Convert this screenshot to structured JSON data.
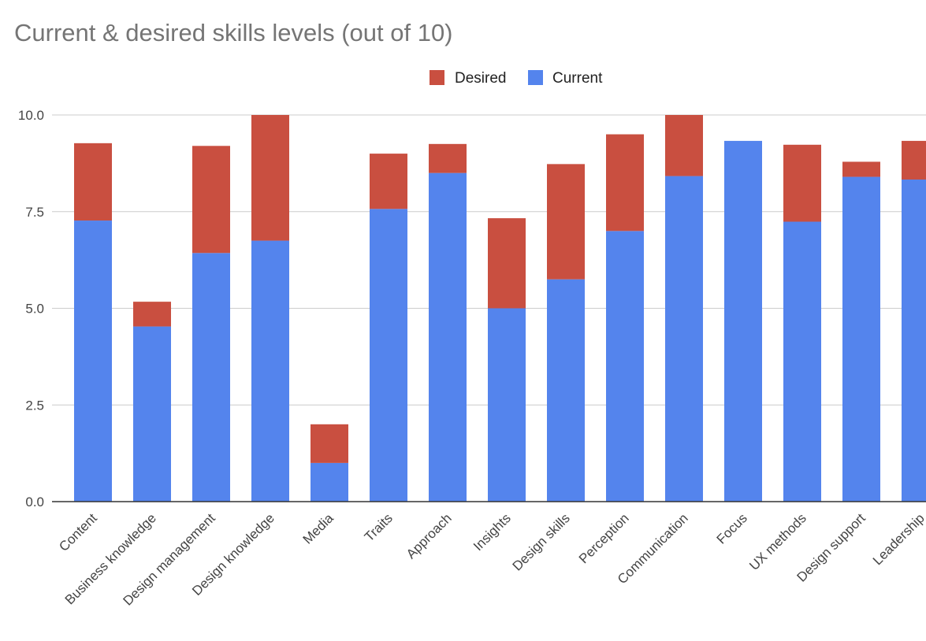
{
  "chart_data": {
    "type": "bar",
    "stacked": true,
    "title": "Current & desired skills levels (out of 10)",
    "xlabel": "",
    "ylabel": "",
    "ylim": [
      0,
      10
    ],
    "yticks": [
      "0.0",
      "2.5",
      "5.0",
      "7.5",
      "10.0"
    ],
    "grid": true,
    "legend_position": "top-center",
    "categories": [
      "Content",
      "Business knowledge",
      "Design management",
      "Design knowledge",
      "Media",
      "Traits",
      "Approach",
      "Insights",
      "Design skills",
      "Perception",
      "Communication",
      "Focus",
      "UX methods",
      "Design support",
      "Leadership"
    ],
    "series": [
      {
        "name": "Current",
        "color": "#5484ED",
        "values": [
          7.27,
          4.53,
          6.43,
          6.75,
          1.0,
          7.57,
          8.5,
          5.0,
          5.75,
          7.0,
          8.42,
          9.33,
          7.24,
          8.4,
          8.33
        ]
      },
      {
        "name": "Desired",
        "color": "#C94F40",
        "values": [
          2.0,
          0.64,
          2.77,
          3.25,
          1.0,
          1.43,
          0.75,
          2.33,
          2.98,
          2.5,
          1.58,
          0.0,
          1.99,
          0.39,
          1.0
        ]
      }
    ],
    "legend_order": [
      "Desired",
      "Current"
    ]
  }
}
